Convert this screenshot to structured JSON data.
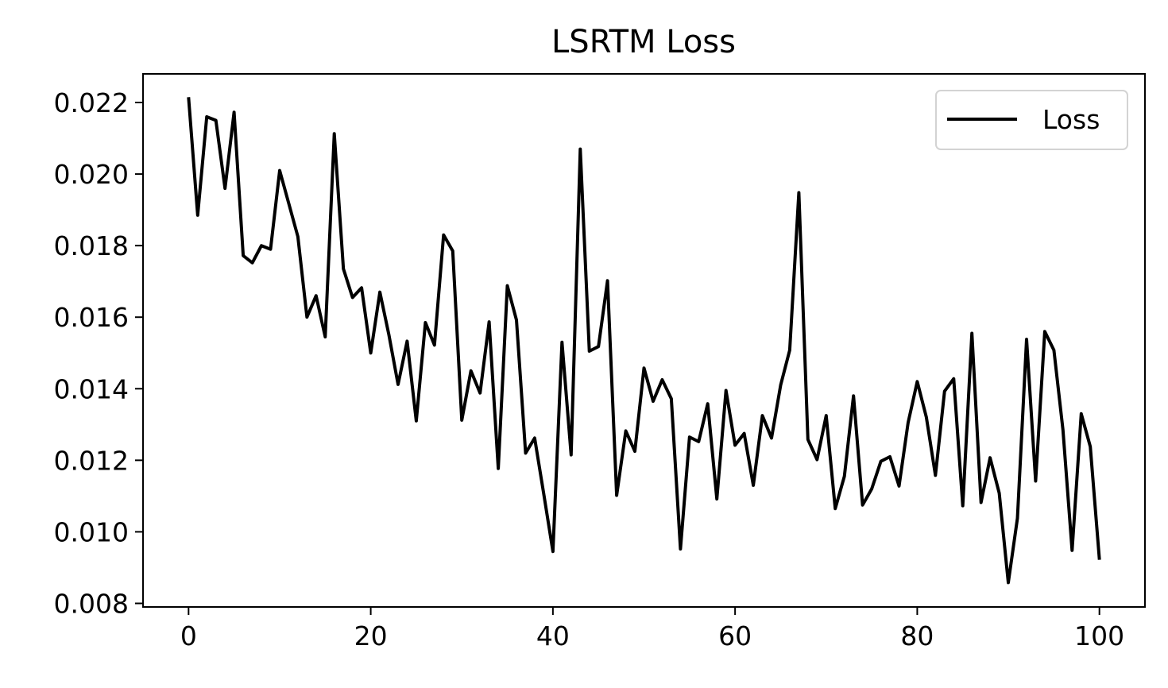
{
  "chart_data": {
    "type": "line",
    "title": "LSRTM Loss",
    "xlabel": "",
    "ylabel": "",
    "xlim": [
      -5,
      105
    ],
    "ylim": [
      0.0079,
      0.0228
    ],
    "xticks": [
      0,
      20,
      40,
      60,
      80,
      100
    ],
    "xtick_labels": [
      "0",
      "20",
      "40",
      "60",
      "80",
      "100"
    ],
    "yticks": [
      0.008,
      0.01,
      0.012,
      0.014,
      0.016,
      0.018,
      0.02,
      0.022
    ],
    "ytick_labels": [
      "0.008",
      "0.010",
      "0.012",
      "0.014",
      "0.016",
      "0.018",
      "0.020",
      "0.022"
    ],
    "grid": false,
    "legend_position": "top-right",
    "series": [
      {
        "name": "Loss",
        "color": "#000000",
        "x": [
          0,
          1,
          2,
          3,
          4,
          5,
          6,
          7,
          8,
          9,
          10,
          11,
          12,
          13,
          14,
          15,
          16,
          17,
          18,
          19,
          20,
          21,
          22,
          23,
          24,
          25,
          26,
          27,
          28,
          29,
          30,
          31,
          32,
          33,
          34,
          35,
          36,
          37,
          38,
          39,
          40,
          41,
          42,
          43,
          44,
          45,
          46,
          47,
          48,
          49,
          50,
          51,
          52,
          53,
          54,
          55,
          56,
          57,
          58,
          59,
          60,
          61,
          62,
          63,
          64,
          65,
          66,
          67,
          68,
          69,
          70,
          71,
          72,
          73,
          74,
          75,
          76,
          77,
          78,
          79,
          80,
          81,
          82,
          83,
          84,
          85,
          86,
          87,
          88,
          89,
          90,
          91,
          92,
          93,
          94,
          95,
          96,
          97,
          98,
          99,
          100
        ],
        "y": [
          0.02215,
          0.01885,
          0.0216,
          0.0215,
          0.0196,
          0.02173,
          0.01772,
          0.01752,
          0.018,
          0.0179,
          0.0201,
          0.01918,
          0.01825,
          0.016,
          0.0166,
          0.01545,
          0.02113,
          0.01735,
          0.01655,
          0.01682,
          0.015,
          0.0167,
          0.0155,
          0.01412,
          0.01533,
          0.0131,
          0.01585,
          0.01522,
          0.0183,
          0.01785,
          0.01312,
          0.0145,
          0.01388,
          0.01587,
          0.01177,
          0.01688,
          0.01592,
          0.0122,
          0.01262,
          0.01105,
          0.00945,
          0.0153,
          0.01215,
          0.0207,
          0.01505,
          0.01518,
          0.01702,
          0.01102,
          0.01282,
          0.01225,
          0.01458,
          0.01365,
          0.01425,
          0.01372,
          0.00952,
          0.01265,
          0.01252,
          0.01358,
          0.01092,
          0.01395,
          0.01242,
          0.01275,
          0.0113,
          0.01325,
          0.01262,
          0.0141,
          0.01508,
          0.01948,
          0.01258,
          0.01202,
          0.01325,
          0.01065,
          0.01155,
          0.0138,
          0.01075,
          0.0112,
          0.01197,
          0.0121,
          0.01128,
          0.01305,
          0.0142,
          0.0132,
          0.01158,
          0.01393,
          0.01428,
          0.01073,
          0.01555,
          0.01082,
          0.01207,
          0.01108,
          0.00858,
          0.01038,
          0.01538,
          0.01142,
          0.0156,
          0.01508,
          0.01285,
          0.00948,
          0.0133,
          0.01238,
          0.00922
        ]
      }
    ]
  }
}
